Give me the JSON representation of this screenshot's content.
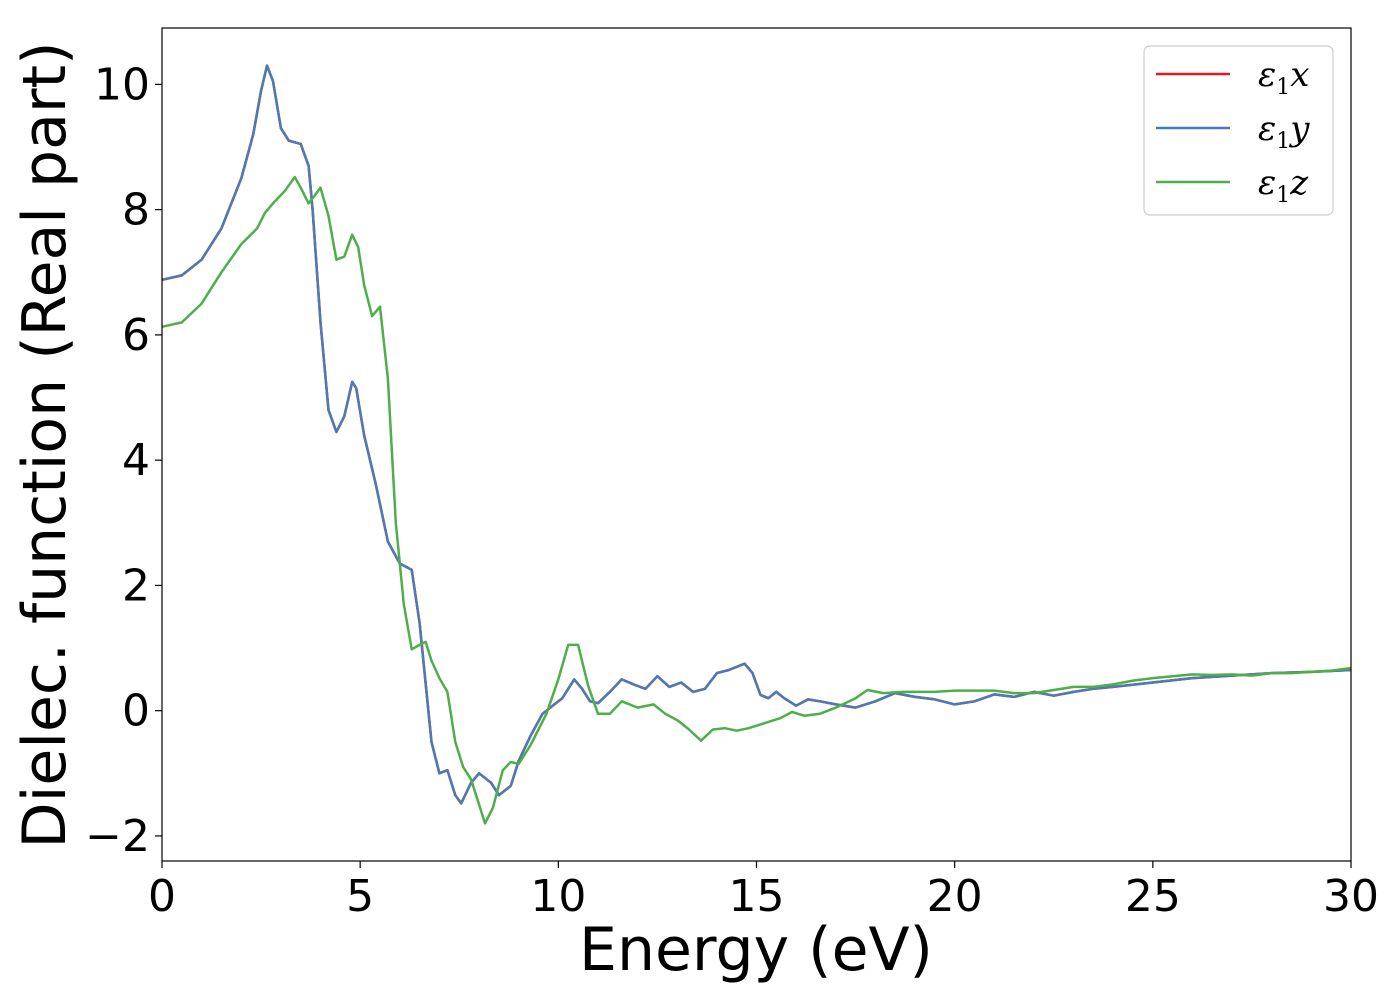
{
  "chart_data": {
    "type": "line",
    "xlabel": "Energy (eV)",
    "ylabel": "Dielec. function (Real part)",
    "xlim": [
      0,
      30
    ],
    "ylim": [
      -2.4,
      10.9
    ],
    "xticks": [
      0,
      5,
      10,
      15,
      20,
      25,
      30
    ],
    "xtick_labels": [
      "0",
      "5",
      "10",
      "15",
      "20",
      "25",
      "30"
    ],
    "yticks": [
      -2,
      0,
      2,
      4,
      6,
      8,
      10
    ],
    "ytick_labels": [
      "−2",
      "0",
      "2",
      "4",
      "6",
      "8",
      "10"
    ],
    "grid": false,
    "legend_position": "top-right",
    "series": [
      {
        "name": "ε1x",
        "legend_main": "ε",
        "legend_sub": "1",
        "legend_tail": "x",
        "color": "#e41a1c",
        "points": [
          [
            0,
            6.88
          ],
          [
            0.5,
            6.95
          ],
          [
            1.0,
            7.2
          ],
          [
            1.5,
            7.7
          ],
          [
            2.0,
            8.5
          ],
          [
            2.3,
            9.2
          ],
          [
            2.5,
            9.9
          ],
          [
            2.65,
            10.3
          ],
          [
            2.8,
            10.05
          ],
          [
            3.0,
            9.3
          ],
          [
            3.2,
            9.1
          ],
          [
            3.5,
            9.05
          ],
          [
            3.7,
            8.7
          ],
          [
            3.8,
            8.0
          ],
          [
            4.0,
            6.2
          ],
          [
            4.2,
            4.8
          ],
          [
            4.4,
            4.45
          ],
          [
            4.6,
            4.7
          ],
          [
            4.8,
            5.25
          ],
          [
            4.9,
            5.15
          ],
          [
            5.1,
            4.4
          ],
          [
            5.4,
            3.6
          ],
          [
            5.7,
            2.7
          ],
          [
            6.0,
            2.35
          ],
          [
            6.3,
            2.25
          ],
          [
            6.5,
            1.4
          ],
          [
            6.8,
            -0.5
          ],
          [
            7.0,
            -1.0
          ],
          [
            7.2,
            -0.95
          ],
          [
            7.4,
            -1.35
          ],
          [
            7.55,
            -1.48
          ],
          [
            7.8,
            -1.15
          ],
          [
            8.0,
            -1.0
          ],
          [
            8.3,
            -1.15
          ],
          [
            8.5,
            -1.35
          ],
          [
            8.8,
            -1.2
          ],
          [
            9.0,
            -0.8
          ],
          [
            9.3,
            -0.4
          ],
          [
            9.6,
            -0.05
          ],
          [
            9.9,
            0.1
          ],
          [
            10.1,
            0.2
          ],
          [
            10.4,
            0.5
          ],
          [
            10.6,
            0.35
          ],
          [
            10.8,
            0.15
          ],
          [
            11.0,
            0.12
          ],
          [
            11.3,
            0.3
          ],
          [
            11.6,
            0.5
          ],
          [
            11.9,
            0.42
          ],
          [
            12.2,
            0.35
          ],
          [
            12.5,
            0.55
          ],
          [
            12.8,
            0.38
          ],
          [
            13.1,
            0.45
          ],
          [
            13.4,
            0.3
          ],
          [
            13.7,
            0.35
          ],
          [
            14.0,
            0.6
          ],
          [
            14.3,
            0.65
          ],
          [
            14.7,
            0.75
          ],
          [
            14.9,
            0.6
          ],
          [
            15.1,
            0.25
          ],
          [
            15.3,
            0.2
          ],
          [
            15.5,
            0.3
          ],
          [
            15.7,
            0.2
          ],
          [
            16.0,
            0.08
          ],
          [
            16.3,
            0.18
          ],
          [
            16.6,
            0.15
          ],
          [
            17.0,
            0.1
          ],
          [
            17.5,
            0.05
          ],
          [
            18.0,
            0.15
          ],
          [
            18.5,
            0.28
          ],
          [
            19.0,
            0.22
          ],
          [
            19.5,
            0.18
          ],
          [
            20.0,
            0.1
          ],
          [
            20.5,
            0.15
          ],
          [
            21.0,
            0.26
          ],
          [
            21.5,
            0.22
          ],
          [
            22.0,
            0.3
          ],
          [
            22.5,
            0.24
          ],
          [
            23.0,
            0.3
          ],
          [
            23.5,
            0.35
          ],
          [
            24.0,
            0.38
          ],
          [
            25.0,
            0.45
          ],
          [
            26.0,
            0.52
          ],
          [
            27.0,
            0.56
          ],
          [
            28.0,
            0.6
          ],
          [
            29.0,
            0.62
          ],
          [
            30.0,
            0.65
          ]
        ]
      },
      {
        "name": "ε1y",
        "legend_main": "ε",
        "legend_sub": "1",
        "legend_tail": "y",
        "color": "#4a7bb4",
        "points": [
          [
            0,
            6.88
          ],
          [
            0.5,
            6.95
          ],
          [
            1.0,
            7.2
          ],
          [
            1.5,
            7.7
          ],
          [
            2.0,
            8.5
          ],
          [
            2.3,
            9.2
          ],
          [
            2.5,
            9.9
          ],
          [
            2.65,
            10.3
          ],
          [
            2.8,
            10.05
          ],
          [
            3.0,
            9.3
          ],
          [
            3.2,
            9.1
          ],
          [
            3.5,
            9.05
          ],
          [
            3.7,
            8.7
          ],
          [
            3.8,
            8.0
          ],
          [
            4.0,
            6.2
          ],
          [
            4.2,
            4.8
          ],
          [
            4.4,
            4.45
          ],
          [
            4.6,
            4.7
          ],
          [
            4.8,
            5.25
          ],
          [
            4.9,
            5.15
          ],
          [
            5.1,
            4.4
          ],
          [
            5.4,
            3.6
          ],
          [
            5.7,
            2.7
          ],
          [
            6.0,
            2.35
          ],
          [
            6.3,
            2.25
          ],
          [
            6.5,
            1.4
          ],
          [
            6.8,
            -0.5
          ],
          [
            7.0,
            -1.0
          ],
          [
            7.2,
            -0.95
          ],
          [
            7.4,
            -1.35
          ],
          [
            7.55,
            -1.48
          ],
          [
            7.8,
            -1.15
          ],
          [
            8.0,
            -1.0
          ],
          [
            8.3,
            -1.15
          ],
          [
            8.5,
            -1.35
          ],
          [
            8.8,
            -1.2
          ],
          [
            9.0,
            -0.8
          ],
          [
            9.3,
            -0.4
          ],
          [
            9.6,
            -0.05
          ],
          [
            9.9,
            0.1
          ],
          [
            10.1,
            0.2
          ],
          [
            10.4,
            0.5
          ],
          [
            10.6,
            0.35
          ],
          [
            10.8,
            0.15
          ],
          [
            11.0,
            0.12
          ],
          [
            11.3,
            0.3
          ],
          [
            11.6,
            0.5
          ],
          [
            11.9,
            0.42
          ],
          [
            12.2,
            0.35
          ],
          [
            12.5,
            0.55
          ],
          [
            12.8,
            0.38
          ],
          [
            13.1,
            0.45
          ],
          [
            13.4,
            0.3
          ],
          [
            13.7,
            0.35
          ],
          [
            14.0,
            0.6
          ],
          [
            14.3,
            0.65
          ],
          [
            14.7,
            0.75
          ],
          [
            14.9,
            0.6
          ],
          [
            15.1,
            0.25
          ],
          [
            15.3,
            0.2
          ],
          [
            15.5,
            0.3
          ],
          [
            15.7,
            0.2
          ],
          [
            16.0,
            0.08
          ],
          [
            16.3,
            0.18
          ],
          [
            16.6,
            0.15
          ],
          [
            17.0,
            0.1
          ],
          [
            17.5,
            0.05
          ],
          [
            18.0,
            0.15
          ],
          [
            18.5,
            0.28
          ],
          [
            19.0,
            0.22
          ],
          [
            19.5,
            0.18
          ],
          [
            20.0,
            0.1
          ],
          [
            20.5,
            0.15
          ],
          [
            21.0,
            0.26
          ],
          [
            21.5,
            0.22
          ],
          [
            22.0,
            0.3
          ],
          [
            22.5,
            0.24
          ],
          [
            23.0,
            0.3
          ],
          [
            23.5,
            0.35
          ],
          [
            24.0,
            0.38
          ],
          [
            25.0,
            0.45
          ],
          [
            26.0,
            0.52
          ],
          [
            27.0,
            0.56
          ],
          [
            28.0,
            0.6
          ],
          [
            29.0,
            0.62
          ],
          [
            30.0,
            0.65
          ]
        ]
      },
      {
        "name": "ε1z",
        "legend_main": "ε",
        "legend_sub": "1",
        "legend_tail": "z",
        "color": "#4daf4a",
        "points": [
          [
            0,
            6.13
          ],
          [
            0.5,
            6.2
          ],
          [
            1.0,
            6.5
          ],
          [
            1.5,
            7.0
          ],
          [
            2.0,
            7.45
          ],
          [
            2.4,
            7.7
          ],
          [
            2.6,
            7.95
          ],
          [
            2.8,
            8.1
          ],
          [
            3.1,
            8.3
          ],
          [
            3.35,
            8.52
          ],
          [
            3.5,
            8.35
          ],
          [
            3.7,
            8.1
          ],
          [
            4.0,
            8.35
          ],
          [
            4.2,
            7.9
          ],
          [
            4.4,
            7.2
          ],
          [
            4.6,
            7.25
          ],
          [
            4.8,
            7.6
          ],
          [
            4.95,
            7.4
          ],
          [
            5.1,
            6.8
          ],
          [
            5.3,
            6.3
          ],
          [
            5.5,
            6.45
          ],
          [
            5.7,
            5.3
          ],
          [
            5.9,
            3.0
          ],
          [
            6.1,
            1.7
          ],
          [
            6.3,
            0.98
          ],
          [
            6.5,
            1.05
          ],
          [
            6.65,
            1.1
          ],
          [
            6.8,
            0.8
          ],
          [
            7.0,
            0.52
          ],
          [
            7.2,
            0.3
          ],
          [
            7.4,
            -0.5
          ],
          [
            7.6,
            -0.9
          ],
          [
            7.8,
            -1.1
          ],
          [
            8.0,
            -1.5
          ],
          [
            8.15,
            -1.8
          ],
          [
            8.35,
            -1.55
          ],
          [
            8.6,
            -0.95
          ],
          [
            8.8,
            -0.82
          ],
          [
            9.0,
            -0.85
          ],
          [
            9.3,
            -0.55
          ],
          [
            9.7,
            -0.05
          ],
          [
            10.0,
            0.5
          ],
          [
            10.25,
            1.05
          ],
          [
            10.5,
            1.05
          ],
          [
            10.75,
            0.4
          ],
          [
            11.0,
            -0.05
          ],
          [
            11.3,
            -0.05
          ],
          [
            11.6,
            0.15
          ],
          [
            12.0,
            0.05
          ],
          [
            12.4,
            0.1
          ],
          [
            12.7,
            -0.05
          ],
          [
            13.0,
            -0.15
          ],
          [
            13.3,
            -0.3
          ],
          [
            13.6,
            -0.48
          ],
          [
            13.9,
            -0.3
          ],
          [
            14.2,
            -0.28
          ],
          [
            14.5,
            -0.32
          ],
          [
            14.8,
            -0.28
          ],
          [
            15.2,
            -0.2
          ],
          [
            15.6,
            -0.12
          ],
          [
            15.9,
            -0.02
          ],
          [
            16.2,
            -0.08
          ],
          [
            16.6,
            -0.05
          ],
          [
            17.0,
            0.05
          ],
          [
            17.5,
            0.2
          ],
          [
            17.8,
            0.33
          ],
          [
            18.2,
            0.28
          ],
          [
            18.7,
            0.3
          ],
          [
            19.0,
            0.3
          ],
          [
            19.5,
            0.3
          ],
          [
            20.0,
            0.32
          ],
          [
            20.5,
            0.32
          ],
          [
            21.0,
            0.32
          ],
          [
            21.5,
            0.28
          ],
          [
            22.0,
            0.28
          ],
          [
            22.5,
            0.33
          ],
          [
            23.0,
            0.38
          ],
          [
            23.5,
            0.38
          ],
          [
            24.0,
            0.42
          ],
          [
            24.5,
            0.48
          ],
          [
            25.0,
            0.52
          ],
          [
            25.5,
            0.55
          ],
          [
            26.0,
            0.58
          ],
          [
            26.5,
            0.57
          ],
          [
            27.0,
            0.58
          ],
          [
            27.5,
            0.56
          ],
          [
            28.0,
            0.6
          ],
          [
            28.5,
            0.6
          ],
          [
            29.0,
            0.62
          ],
          [
            29.5,
            0.64
          ],
          [
            30.0,
            0.68
          ]
        ]
      }
    ]
  }
}
